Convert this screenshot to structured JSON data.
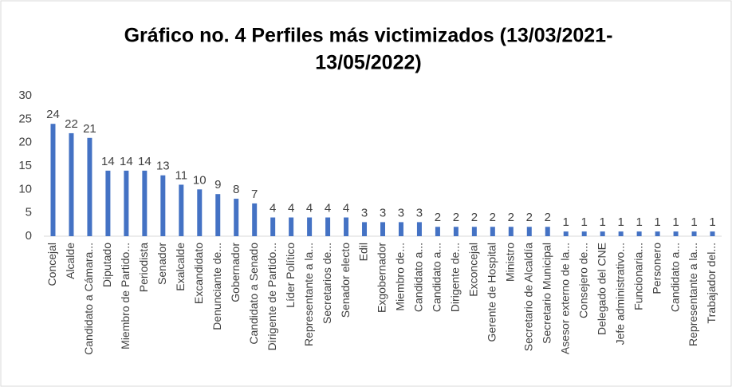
{
  "chart_data": {
    "type": "bar",
    "title": [
      "Gráfico no. 4 Perfiles más victimizados (13/03/2021-",
      "13/05/2022)"
    ],
    "categories": [
      "Concejal",
      "Alcalde",
      "Candidato a Cámara...",
      "Diputado",
      "Miembro de Partido...",
      "Periodista",
      "Senador",
      "Exalcalde",
      "Excandidato",
      "Denunciante de...",
      "Gobernador",
      "Candidato a Senado",
      "Dirigente de Partido...",
      "Líder Político",
      "Representante a la...",
      "Secretarios de...",
      "Senador electo",
      "Edil",
      "Exgobernador",
      "Miembro de...",
      "Candidato a...",
      "Candidato a...",
      "Dirigente de...",
      "Exconcejal",
      "Gerente de Hospital",
      "Ministro",
      "Secretario de Alcaldía",
      "Secretario Municipal",
      "Asesor externo de la...",
      "Consejero de...",
      "Delegado del CNE",
      "Jefe administrativo...",
      "Funcionaria...",
      "Personero",
      "Candidato a...",
      "Representante a la...",
      "Trabajador del..."
    ],
    "values": [
      24,
      22,
      21,
      14,
      14,
      14,
      13,
      11,
      10,
      9,
      8,
      7,
      4,
      4,
      4,
      4,
      4,
      3,
      3,
      3,
      3,
      2,
      2,
      2,
      2,
      2,
      2,
      2,
      1,
      1,
      1,
      1,
      1,
      1,
      1,
      1,
      1
    ],
    "color": "#4472c4",
    "ylim": [
      0,
      30
    ],
    "yticks": [
      0,
      5,
      10,
      15,
      20,
      25,
      30
    ],
    "grid": false
  }
}
